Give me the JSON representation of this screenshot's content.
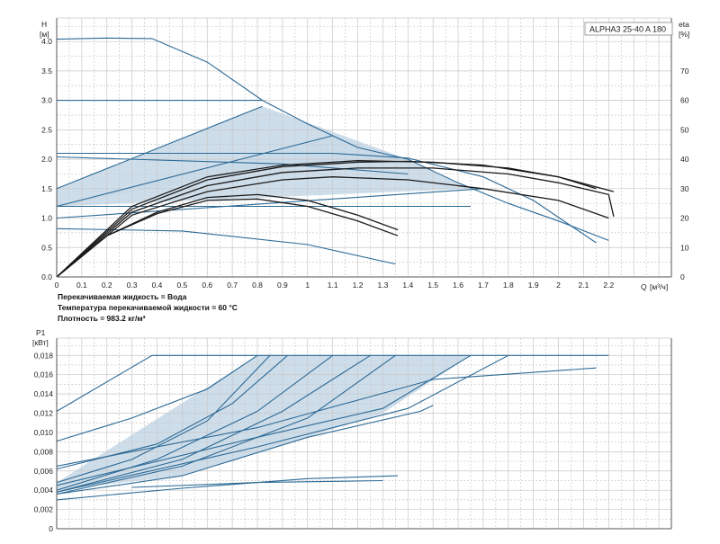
{
  "chart_data": [
    {
      "type": "line",
      "model_label": "ALPHA3 25-40 A 180",
      "ylabel": "H",
      "yunit": "[м]",
      "y2label": "eta",
      "y2unit": "[%]",
      "xlabel": "Q",
      "xunit": "[м³/ч]",
      "xlim": [
        0,
        2.45
      ],
      "ylim": [
        0,
        4.4
      ],
      "y2lim": [
        0,
        88
      ],
      "x_ticks": [
        "0",
        "0.1",
        "0.2",
        "0.3",
        "0.4",
        "0.5",
        "0.6",
        "0.7",
        "0.8",
        "0.9",
        "1",
        "1.1",
        "1.2",
        "1.3",
        "1.4",
        "1.5",
        "1.6",
        "1.7",
        "1.8",
        "1.9",
        "2",
        "2.1",
        "2.2"
      ],
      "y_ticks": [
        "0.0",
        "0.5",
        "1.0",
        "1.5",
        "2.0",
        "2.5",
        "3.0",
        "3.5",
        "4.0"
      ],
      "y2_ticks": [
        "0",
        "10",
        "20",
        "30",
        "40",
        "50",
        "60",
        "70"
      ],
      "grid": true,
      "fill_color": "#c9d9e8",
      "line_color": "#2c6a96",
      "eff_color": "#1a1a1a",
      "regions": [
        {
          "points": [
            [
              0,
              1.5
            ],
            [
              0.82,
              2.9
            ],
            [
              1.4,
              2.0
            ],
            [
              0.9,
              1.9
            ],
            [
              0,
              1.2
            ]
          ]
        },
        {
          "points": [
            [
              0,
              1.2
            ],
            [
              1.1,
              2.4
            ],
            [
              1.4,
              2.0
            ],
            [
              1.65,
              1.5
            ],
            [
              0,
              1.2
            ]
          ]
        }
      ],
      "series": [
        {
          "kind": "head",
          "points": [
            [
              0,
              4.04
            ],
            [
              0.2,
              4.06
            ],
            [
              0.38,
              4.05
            ],
            [
              0.6,
              3.65
            ],
            [
              0.82,
              3.0
            ],
            [
              1.0,
              2.6
            ],
            [
              1.2,
              2.2
            ],
            [
              1.4,
              2.0
            ],
            [
              1.6,
              1.6
            ],
            [
              1.8,
              1.25
            ],
            [
              2.0,
              0.95
            ],
            [
              2.2,
              0.62
            ]
          ]
        },
        {
          "kind": "head",
          "points": [
            [
              0,
              3.0
            ],
            [
              0.82,
              3.0
            ]
          ]
        },
        {
          "kind": "head",
          "points": [
            [
              0,
              2.1
            ],
            [
              1.1,
              2.1
            ],
            [
              1.4,
              2.02
            ],
            [
              1.7,
              1.7
            ],
            [
              1.9,
              1.3
            ],
            [
              2.15,
              0.58
            ]
          ]
        },
        {
          "kind": "head",
          "points": [
            [
              0,
              2.04
            ],
            [
              0.9,
              1.92
            ],
            [
              1.4,
              1.75
            ]
          ]
        },
        {
          "kind": "head",
          "points": [
            [
              0,
              1.2
            ],
            [
              0.9,
              1.2
            ],
            [
              1.65,
              1.2
            ]
          ]
        },
        {
          "kind": "head",
          "points": [
            [
              0,
              0.82
            ],
            [
              0.5,
              0.78
            ],
            [
              1.0,
              0.55
            ],
            [
              1.35,
              0.22
            ]
          ]
        },
        {
          "kind": "head",
          "points": [
            [
              0,
              1.5
            ],
            [
              0.82,
              2.9
            ]
          ]
        },
        {
          "kind": "head",
          "points": [
            [
              0,
              1.2
            ],
            [
              1.1,
              2.4
            ]
          ]
        },
        {
          "kind": "head",
          "points": [
            [
              0,
              1.0
            ],
            [
              1.7,
              1.5
            ]
          ]
        },
        {
          "kind": "efficiency",
          "points": [
            [
              0,
              0
            ],
            [
              0.2,
              14
            ],
            [
              0.4,
              22
            ],
            [
              0.6,
              27
            ],
            [
              0.8,
              28
            ],
            [
              1.0,
              26
            ],
            [
              1.2,
              21
            ],
            [
              1.36,
              16
            ]
          ]
        },
        {
          "kind": "efficiency",
          "points": [
            [
              0,
              0
            ],
            [
              0.2,
              14
            ],
            [
              0.4,
              21.5
            ],
            [
              0.6,
              26
            ],
            [
              0.8,
              26.5
            ],
            [
              1.0,
              24
            ],
            [
              1.2,
              19
            ],
            [
              1.36,
              14
            ]
          ]
        },
        {
          "kind": "efficiency",
          "points": [
            [
              0,
              0
            ],
            [
              0.3,
              21
            ],
            [
              0.6,
              29
            ],
            [
              0.9,
              33
            ],
            [
              1.1,
              34
            ],
            [
              1.4,
              33
            ],
            [
              1.7,
              30
            ],
            [
              2.0,
              26
            ],
            [
              2.2,
              20
            ]
          ]
        },
        {
          "kind": "efficiency",
          "points": [
            [
              0,
              0
            ],
            [
              0.3,
              22
            ],
            [
              0.6,
              31
            ],
            [
              0.9,
              35.5
            ],
            [
              1.2,
              37
            ],
            [
              1.5,
              37
            ],
            [
              1.8,
              35
            ],
            [
              2.0,
              32
            ],
            [
              2.2,
              28
            ],
            [
              2.22,
              20.5
            ]
          ]
        },
        {
          "kind": "efficiency",
          "points": [
            [
              0,
              0
            ],
            [
              0.3,
              23
            ],
            [
              0.6,
              33
            ],
            [
              0.9,
              37.5
            ],
            [
              1.2,
              39
            ],
            [
              1.4,
              39.3
            ],
            [
              1.7,
              38
            ],
            [
              2.0,
              34
            ],
            [
              2.22,
              29
            ]
          ]
        },
        {
          "kind": "efficiency",
          "points": [
            [
              0,
              0
            ],
            [
              0.3,
              24
            ],
            [
              0.6,
              34
            ],
            [
              0.9,
              38
            ],
            [
              1.2,
              39.5
            ],
            [
              1.5,
              39
            ],
            [
              1.8,
              37
            ],
            [
              2.0,
              34
            ],
            [
              2.15,
              30
            ]
          ]
        }
      ]
    },
    {
      "type": "line",
      "ylabel": "P1",
      "yunit": "[кВт]",
      "xlim": [
        0,
        2.45
      ],
      "ylim": [
        0,
        0.0198
      ],
      "y_ticks": [
        "0",
        "0,002",
        "0,004",
        "0,006",
        "0,008",
        "0,010",
        "0,012",
        "0,014",
        "0,016",
        "0,018"
      ],
      "grid": true,
      "fill_color": "#c9d9e8",
      "line_color": "#2c6a96",
      "regions": [
        {
          "points": [
            [
              0,
              0.0048
            ],
            [
              0.8,
              0.018
            ],
            [
              1.65,
              0.018
            ],
            [
              1.3,
              0.012
            ],
            [
              1.0,
              0.0095
            ],
            [
              0.5,
              0.0055
            ],
            [
              0,
              0.004
            ]
          ]
        }
      ],
      "series": [
        {
          "points": [
            [
              0,
              0.0122
            ],
            [
              0.38,
              0.018
            ],
            [
              2.2,
              0.018
            ]
          ]
        },
        {
          "points": [
            [
              0,
              0.0091
            ],
            [
              0.3,
              0.0115
            ],
            [
              0.6,
              0.0145
            ],
            [
              0.8,
              0.018
            ]
          ]
        },
        {
          "points": [
            [
              0,
              0.0062
            ],
            [
              0.4,
              0.0088
            ],
            [
              0.7,
              0.013
            ],
            [
              0.92,
              0.018
            ]
          ]
        },
        {
          "points": [
            [
              0,
              0.0048
            ],
            [
              0.3,
              0.0072
            ],
            [
              0.6,
              0.0112
            ],
            [
              0.85,
              0.018
            ]
          ]
        },
        {
          "points": [
            [
              0,
              0.004
            ],
            [
              0.4,
              0.0072
            ],
            [
              0.8,
              0.0122
            ],
            [
              1.1,
              0.018
            ]
          ]
        },
        {
          "points": [
            [
              0,
              0.0038
            ],
            [
              0.5,
              0.0072
            ],
            [
              0.9,
              0.0122
            ],
            [
              1.25,
              0.018
            ]
          ]
        },
        {
          "points": [
            [
              0,
              0.0036
            ],
            [
              0.5,
              0.0065
            ],
            [
              1.0,
              0.0115
            ],
            [
              1.35,
              0.018
            ]
          ]
        },
        {
          "points": [
            [
              0,
              0.0065
            ],
            [
              0.8,
              0.0105
            ],
            [
              1.5,
              0.0155
            ],
            [
              2.15,
              0.0167
            ]
          ]
        },
        {
          "points": [
            [
              0,
              0.0045
            ],
            [
              0.8,
              0.0095
            ],
            [
              1.3,
              0.0125
            ],
            [
              1.65,
              0.018
            ]
          ]
        },
        {
          "points": [
            [
              0,
              0.0038
            ],
            [
              0.8,
              0.0085
            ],
            [
              1.4,
              0.0125
            ],
            [
              1.8,
              0.018
            ]
          ]
        },
        {
          "points": [
            [
              0,
              0.0036
            ],
            [
              0.5,
              0.0055
            ],
            [
              1.0,
              0.0095
            ],
            [
              1.45,
              0.0122
            ],
            [
              1.5,
              0.0128
            ]
          ]
        },
        {
          "points": [
            [
              0,
              0.003
            ],
            [
              0.5,
              0.0042
            ],
            [
              1.0,
              0.0052
            ],
            [
              1.36,
              0.0055
            ]
          ]
        },
        {
          "points": [
            [
              0.3,
              0.0043
            ],
            [
              0.8,
              0.0048
            ],
            [
              1.3,
              0.005
            ]
          ]
        }
      ]
    }
  ],
  "info_lines": [
    "Перекачиваемая жидкость = Вода",
    "Температура перекачиваемой жидкости = 60 °C",
    "Плотность = 983.2 кг/м³"
  ]
}
